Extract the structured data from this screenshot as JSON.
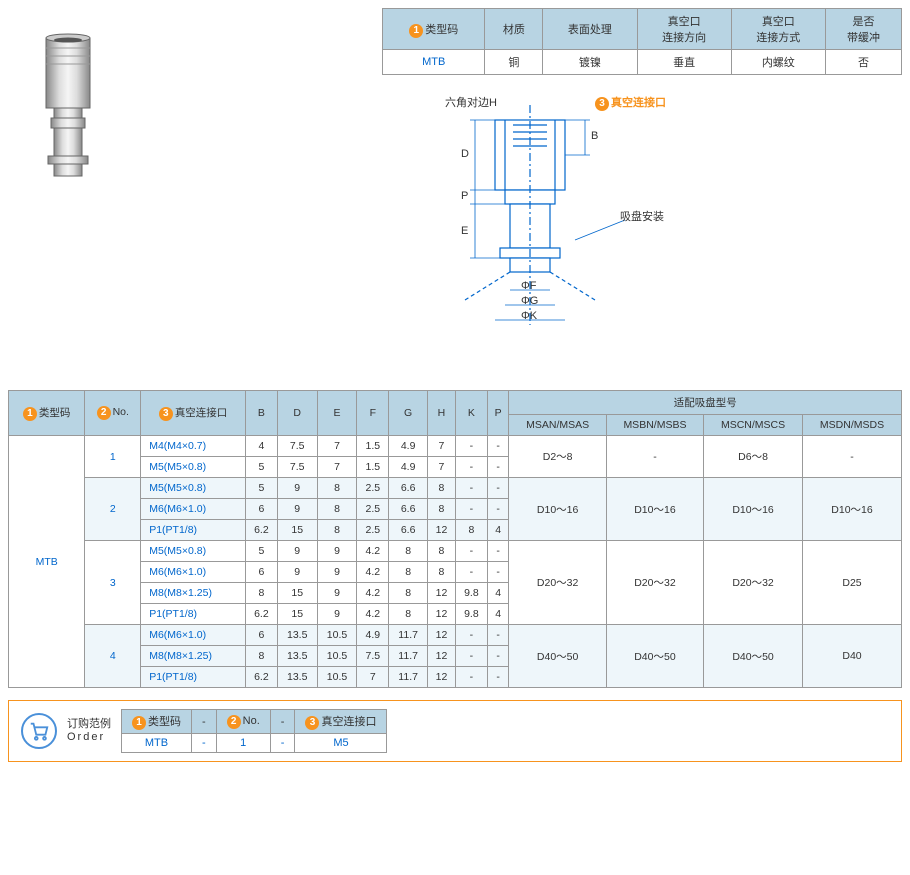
{
  "colors": {
    "header_bg": "#b8d4e3",
    "border": "#999999",
    "orange": "#f7931e",
    "blue": "#0066cc",
    "alt_row": "#eef6fa"
  },
  "small_table": {
    "headers": [
      {
        "num": "1",
        "text": "类型码"
      },
      {
        "text": "材质"
      },
      {
        "text": "表面处理"
      },
      {
        "text": "真空口\n连接方向"
      },
      {
        "text": "真空口\n连接方式"
      },
      {
        "text": "是否\n带缓冲"
      }
    ],
    "row": [
      "MTB",
      "铜",
      "镀镍",
      "垂直",
      "内螺纹",
      "否"
    ]
  },
  "diagram": {
    "label_hex": "六角对边H",
    "label_vac": {
      "num": "3",
      "text": "真空连接口"
    },
    "label_suction": "吸盘安装",
    "dims": {
      "D": "D",
      "B": "B",
      "E": "E",
      "P": "P",
      "F": "ΦF",
      "G": "ΦG",
      "K": "ΦK"
    }
  },
  "main_table": {
    "headers1": [
      {
        "num": "1",
        "text": "类型码"
      },
      {
        "num": "2",
        "text": "No."
      },
      {
        "num": "3",
        "text": "真空连接口"
      },
      {
        "text": "B"
      },
      {
        "text": "D"
      },
      {
        "text": "E"
      },
      {
        "text": "F"
      },
      {
        "text": "G"
      },
      {
        "text": "H"
      },
      {
        "text": "K"
      },
      {
        "text": "P"
      },
      {
        "text": "适配吸盘型号",
        "colspan": 4
      }
    ],
    "headers2": [
      "MSAN/MSAS",
      "MSBN/MSBS",
      "MSCN/MSCS",
      "MSDN/MSDS"
    ],
    "type_code": "MTB",
    "groups": [
      {
        "no": "1",
        "rows": [
          {
            "conn": "M4(M4×0.7)",
            "v": [
              "4",
              "7.5",
              "7",
              "1.5",
              "4.9",
              "7",
              "-",
              "-"
            ]
          },
          {
            "conn": "M5(M5×0.8)",
            "v": [
              "5",
              "7.5",
              "7",
              "1.5",
              "4.9",
              "7",
              "-",
              "-"
            ]
          }
        ],
        "fit": [
          "D2～8",
          "-",
          "D6～8",
          "-"
        ]
      },
      {
        "no": "2",
        "rows": [
          {
            "conn": "M5(M5×0.8)",
            "v": [
              "5",
              "9",
              "8",
              "2.5",
              "6.6",
              "8",
              "-",
              "-"
            ]
          },
          {
            "conn": "M6(M6×1.0)",
            "v": [
              "6",
              "9",
              "8",
              "2.5",
              "6.6",
              "8",
              "-",
              "-"
            ]
          },
          {
            "conn": "P1(PT1/8)",
            "v": [
              "6.2",
              "15",
              "8",
              "2.5",
              "6.6",
              "12",
              "8",
              "4"
            ]
          }
        ],
        "fit": [
          "D10～16",
          "D10～16",
          "D10～16",
          "D10～16"
        ]
      },
      {
        "no": "3",
        "rows": [
          {
            "conn": "M5(M5×0.8)",
            "v": [
              "5",
              "9",
              "9",
              "4.2",
              "8",
              "8",
              "-",
              "-"
            ]
          },
          {
            "conn": "M6(M6×1.0)",
            "v": [
              "6",
              "9",
              "9",
              "4.2",
              "8",
              "8",
              "-",
              "-"
            ]
          },
          {
            "conn": "M8(M8×1.25)",
            "v": [
              "8",
              "15",
              "9",
              "4.2",
              "8",
              "12",
              "9.8",
              "4"
            ]
          },
          {
            "conn": "P1(PT1/8)",
            "v": [
              "6.2",
              "15",
              "9",
              "4.2",
              "8",
              "12",
              "9.8",
              "4"
            ]
          }
        ],
        "fit": [
          "D20～32",
          "D20～32",
          "D20～32",
          "D25"
        ]
      },
      {
        "no": "4",
        "rows": [
          {
            "conn": "M6(M6×1.0)",
            "v": [
              "6",
              "13.5",
              "10.5",
              "4.9",
              "11.7",
              "12",
              "-",
              "-"
            ]
          },
          {
            "conn": "M8(M8×1.25)",
            "v": [
              "8",
              "13.5",
              "10.5",
              "7.5",
              "11.7",
              "12",
              "-",
              "-"
            ]
          },
          {
            "conn": "P1(PT1/8)",
            "v": [
              "6.2",
              "13.5",
              "10.5",
              "7",
              "11.7",
              "12",
              "-",
              "-"
            ]
          }
        ],
        "fit": [
          "D40～50",
          "D40～50",
          "D40～50",
          "D40"
        ]
      }
    ]
  },
  "order": {
    "label_cn": "订购范例",
    "label_en": "Order",
    "headers": [
      {
        "num": "1",
        "text": "类型码"
      },
      {
        "text": "-"
      },
      {
        "num": "2",
        "text": "No."
      },
      {
        "text": "-"
      },
      {
        "num": "3",
        "text": "真空连接口"
      }
    ],
    "values": [
      "MTB",
      "-",
      "1",
      "-",
      "M5"
    ]
  }
}
